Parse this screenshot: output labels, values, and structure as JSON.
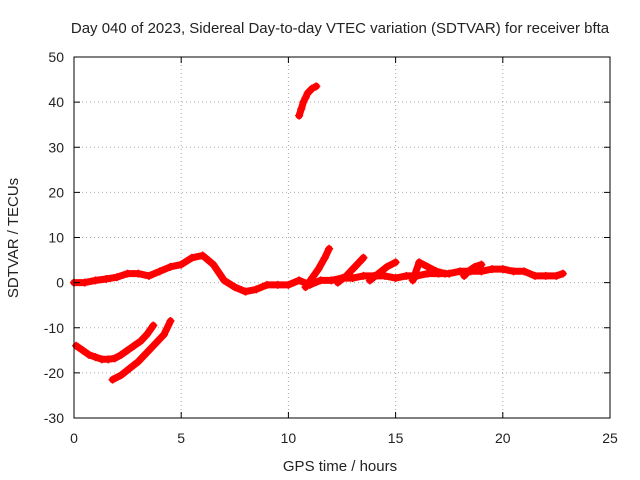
{
  "chart_data": {
    "type": "scatter",
    "title": "Day 040 of 2023, Sidereal Day-to-day VTEC variation (SDTVAR) for receiver bfta",
    "xlabel": "GPS time / hours",
    "ylabel": "SDTVAR / TECUs",
    "xlim": [
      0,
      25
    ],
    "ylim": [
      -30,
      50
    ],
    "x_ticks": [
      "0",
      "5",
      "10",
      "15",
      "20",
      "25"
    ],
    "y_ticks": [
      "-30",
      "-20",
      "-10",
      "0",
      "10",
      "20",
      "30",
      "40",
      "50"
    ],
    "grid": true,
    "marker": "plus",
    "color": "#ff0000",
    "series": [
      {
        "name": "main-trace",
        "x": [
          0,
          0.5,
          1,
          1.5,
          2,
          2.5,
          3,
          3.5,
          4,
          4.5,
          5,
          5.5,
          6,
          6.5,
          7,
          7.5,
          8,
          8.5,
          9,
          9.5,
          10,
          10.5,
          11,
          11.5,
          12,
          12.5,
          13,
          13.5,
          14,
          14.5,
          15,
          15.5,
          16,
          16.5,
          17,
          17.5,
          18,
          18.5,
          19,
          19.5,
          20,
          20.5,
          21,
          21.5,
          22,
          22.5,
          22.8
        ],
        "y": [
          0,
          0,
          0.5,
          0.8,
          1.2,
          2,
          2,
          1.5,
          2.5,
          3.5,
          4,
          5.5,
          6,
          4,
          0.5,
          -1,
          -2,
          -1.5,
          -0.5,
          -0.5,
          -0.5,
          0.5,
          -0.5,
          0.5,
          0.5,
          1,
          1,
          1.5,
          1.5,
          1.5,
          1,
          1.5,
          1.5,
          2,
          2,
          2,
          2.5,
          2.5,
          2.5,
          3,
          3,
          2.5,
          2.5,
          1.5,
          1.5,
          1.5,
          2
        ]
      },
      {
        "name": "lower-arc",
        "x": [
          0.1,
          0.4,
          0.7,
          1,
          1.3,
          1.6,
          1.9,
          2.2,
          2.5,
          2.8,
          3.1,
          3.4,
          3.7
        ],
        "y": [
          -14,
          -15,
          -16,
          -16.5,
          -17,
          -17,
          -16.8,
          -16,
          -15,
          -14,
          -13,
          -11.5,
          -9.5
        ]
      },
      {
        "name": "lower-rise",
        "x": [
          1.8,
          2.2,
          2.6,
          3,
          3.4,
          3.8,
          4.2,
          4.5
        ],
        "y": [
          -21.5,
          -20.5,
          -19,
          -17.5,
          -15.5,
          -13.5,
          -11.5,
          -8.5
        ]
      },
      {
        "name": "high-arc",
        "x": [
          10.5,
          10.6,
          10.7,
          10.8,
          10.9,
          11.1,
          11.3
        ],
        "y": [
          37,
          38.5,
          40,
          41,
          42,
          43,
          43.5
        ]
      },
      {
        "name": "spike-1",
        "x": [
          10.8,
          11.1,
          11.4,
          11.7,
          11.9
        ],
        "y": [
          -1,
          1,
          3,
          5.5,
          7.5
        ]
      },
      {
        "name": "spike-2",
        "x": [
          12.3,
          12.7,
          13.1,
          13.5
        ],
        "y": [
          0,
          1.5,
          3.5,
          5.5
        ]
      },
      {
        "name": "spike-3",
        "x": [
          13.8,
          14.2,
          14.6,
          15.0
        ],
        "y": [
          0.5,
          2,
          3.5,
          4.5
        ]
      },
      {
        "name": "spike-4",
        "x": [
          15.8,
          16.1,
          16.5,
          16.9,
          17.3
        ],
        "y": [
          0.5,
          4.5,
          3.5,
          2.5,
          2
        ]
      },
      {
        "name": "spike-5",
        "x": [
          18.2,
          18.4,
          18.7,
          19.0
        ],
        "y": [
          1.5,
          2.5,
          3.5,
          4
        ]
      }
    ]
  }
}
